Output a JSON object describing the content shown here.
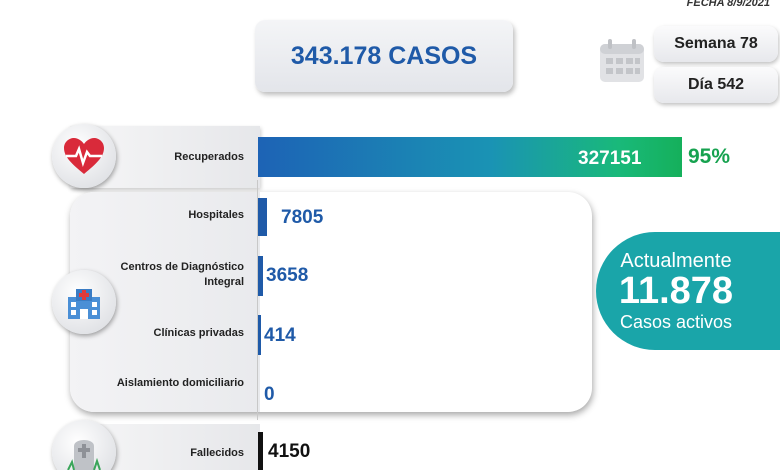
{
  "header": {
    "fecha": "FECHA 8/9/2021",
    "total_casos": "343.178 CASOS",
    "semana": "Semana 78",
    "dia": "Día 542"
  },
  "recuperados": {
    "label": "Recuperados",
    "value": "327151",
    "percent": "95%"
  },
  "hospitalizacion": [
    {
      "label": "Hospitales",
      "value": "7805"
    },
    {
      "label": "Centros de Diagnóstico Integral",
      "value": "3658"
    },
    {
      "label": "Clínicas privadas",
      "value": "414"
    },
    {
      "label": "Aislamiento domiciliario",
      "value": "0"
    }
  ],
  "activos": {
    "line1": "Actualmente",
    "number": "11.878",
    "line3": "Casos activos"
  },
  "fallecidos": {
    "label": "Fallecidos",
    "value": "4150"
  },
  "icons": {
    "calendar": "calendar-icon",
    "heart": "heart-pulse-icon",
    "hospital": "hospital-icon",
    "tombstone": "tombstone-icon"
  },
  "colors": {
    "primary_blue": "#1f5aa8",
    "recovered_green": "#16a24f",
    "active_teal": "#1aa5a9"
  }
}
